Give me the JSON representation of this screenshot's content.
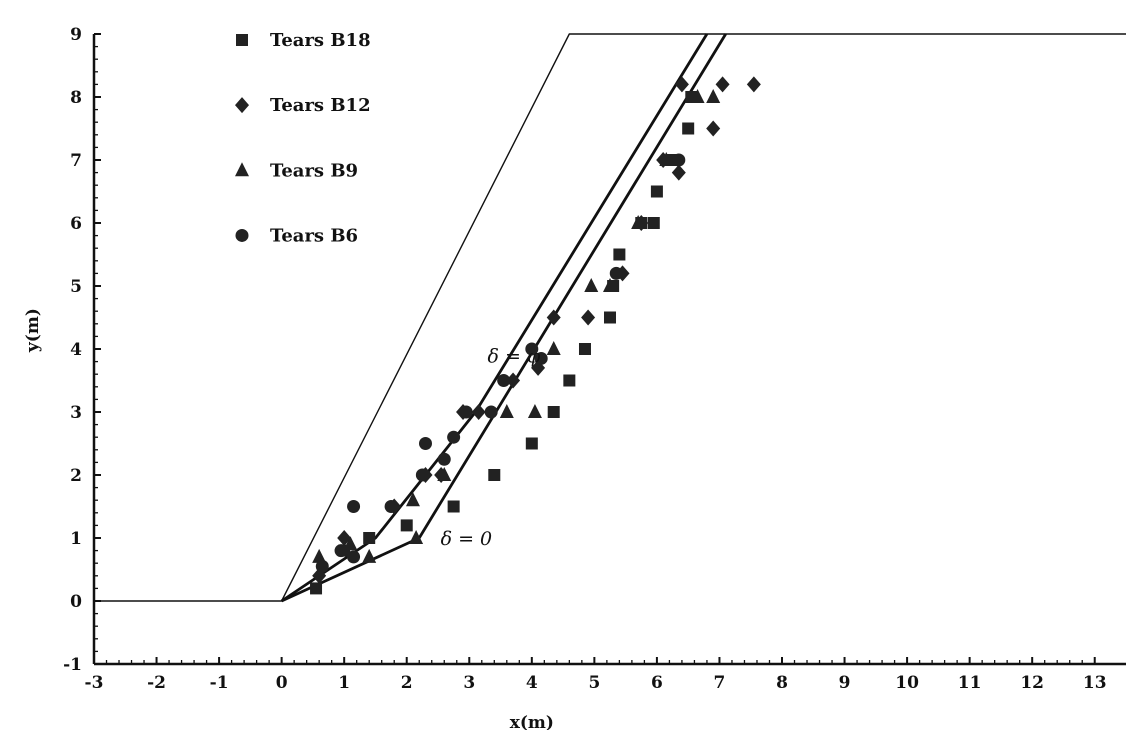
{
  "chart_data": {
    "type": "scatter",
    "xlabel": "x(m)",
    "ylabel": "y(m)",
    "xlim": [
      -3,
      13.5
    ],
    "ylim": [
      -1,
      9
    ],
    "xticks": [
      -3,
      -2,
      -1,
      0,
      1,
      2,
      3,
      4,
      5,
      6,
      7,
      8,
      9,
      10,
      11,
      12,
      13
    ],
    "yticks": [
      -1,
      0,
      1,
      2,
      3,
      4,
      5,
      6,
      7,
      8,
      9
    ],
    "xtick_labels": [
      "-3",
      "-2",
      "-1",
      "0",
      "1",
      "2",
      "3",
      "4",
      "5",
      "6",
      "7",
      "8",
      "9",
      "10",
      "11",
      "12",
      "13"
    ],
    "ytick_labels": [
      "-1",
      "0",
      "1",
      "2",
      "3",
      "4",
      "5",
      "6",
      "7",
      "8",
      "9"
    ],
    "grid": false,
    "legend_position": "top-left",
    "series": [
      {
        "name": "Tears B18",
        "marker": "square",
        "points": [
          [
            0.55,
            0.2
          ],
          [
            1.0,
            0.8
          ],
          [
            1.4,
            1.0
          ],
          [
            2.0,
            1.2
          ],
          [
            2.75,
            1.5
          ],
          [
            3.4,
            2.0
          ],
          [
            4.0,
            2.5
          ],
          [
            4.35,
            3.0
          ],
          [
            4.6,
            3.5
          ],
          [
            4.85,
            4.0
          ],
          [
            5.25,
            4.5
          ],
          [
            5.3,
            5.0
          ],
          [
            5.4,
            5.5
          ],
          [
            5.75,
            6.0
          ],
          [
            5.95,
            6.0
          ],
          [
            6.0,
            6.5
          ],
          [
            6.25,
            7.0
          ],
          [
            6.5,
            7.5
          ],
          [
            6.55,
            8.0
          ]
        ]
      },
      {
        "name": "Tears B12",
        "marker": "diamond",
        "points": [
          [
            0.6,
            0.4
          ],
          [
            1.0,
            1.0
          ],
          [
            1.8,
            1.5
          ],
          [
            2.3,
            2.0
          ],
          [
            2.55,
            2.0
          ],
          [
            2.9,
            3.0
          ],
          [
            3.15,
            3.0
          ],
          [
            3.7,
            3.5
          ],
          [
            4.1,
            3.7
          ],
          [
            4.35,
            4.5
          ],
          [
            4.9,
            4.5
          ],
          [
            5.45,
            5.2
          ],
          [
            5.75,
            6.0
          ],
          [
            6.1,
            7.0
          ],
          [
            6.35,
            6.8
          ],
          [
            6.4,
            8.2
          ],
          [
            6.9,
            7.5
          ],
          [
            7.05,
            8.2
          ],
          [
            7.55,
            8.2
          ]
        ]
      },
      {
        "name": "Tears B9",
        "marker": "triangle",
        "points": [
          [
            0.6,
            0.7
          ],
          [
            1.1,
            0.9
          ],
          [
            1.4,
            0.7
          ],
          [
            2.15,
            1.0
          ],
          [
            2.1,
            1.6
          ],
          [
            2.6,
            2.0
          ],
          [
            3.6,
            3.0
          ],
          [
            4.05,
            3.0
          ],
          [
            4.35,
            4.0
          ],
          [
            4.95,
            5.0
          ],
          [
            5.25,
            5.0
          ],
          [
            5.7,
            6.0
          ],
          [
            6.15,
            7.0
          ],
          [
            6.65,
            8.0
          ],
          [
            6.9,
            8.0
          ]
        ]
      },
      {
        "name": "Tears B6",
        "marker": "circle",
        "points": [
          [
            0.65,
            0.55
          ],
          [
            0.95,
            0.8
          ],
          [
            1.15,
            0.7
          ],
          [
            1.15,
            1.5
          ],
          [
            1.75,
            1.5
          ],
          [
            2.25,
            2.0
          ],
          [
            2.3,
            2.5
          ],
          [
            2.6,
            2.25
          ],
          [
            2.75,
            2.6
          ],
          [
            2.95,
            3.0
          ],
          [
            3.35,
            3.0
          ],
          [
            3.55,
            3.5
          ],
          [
            4.0,
            4.0
          ],
          [
            4.15,
            3.85
          ],
          [
            5.35,
            5.2
          ],
          [
            6.35,
            7.0
          ]
        ]
      }
    ],
    "lines": [
      {
        "name": "slope",
        "points": [
          [
            -3.0,
            0.0
          ],
          [
            0.0,
            0.0
          ],
          [
            4.6,
            9.0
          ],
          [
            13.5,
            9.0
          ]
        ]
      },
      {
        "name": "delta_phi",
        "label": "δ = φ",
        "points": [
          [
            0.0,
            0.0
          ],
          [
            1.5,
            1.0
          ],
          [
            3.1,
            3.0
          ],
          [
            6.8,
            9.0
          ]
        ]
      },
      {
        "name": "delta_0",
        "label": "δ = 0",
        "points": [
          [
            0.0,
            0.0
          ],
          [
            2.2,
            1.0
          ],
          [
            7.1,
            9.0
          ]
        ]
      }
    ],
    "annotations": [
      {
        "text": "δ = φ",
        "x": 3.1,
        "y": 3.9
      },
      {
        "text": "δ = 0",
        "x": 2.35,
        "y": 1.0
      }
    ]
  }
}
